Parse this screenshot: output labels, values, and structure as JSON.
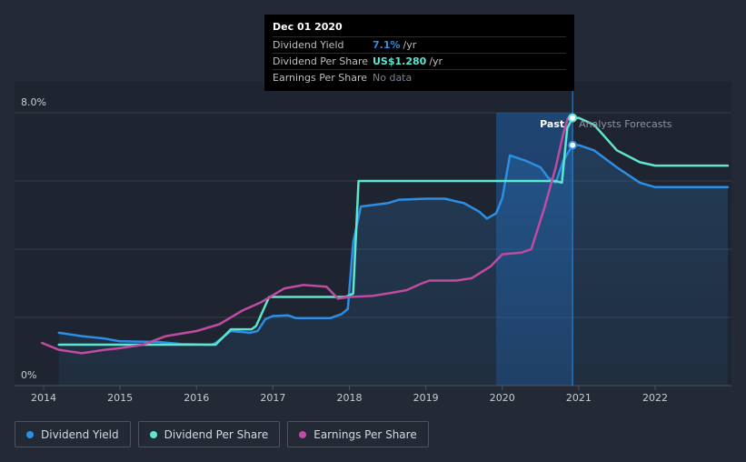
{
  "chart_data": {
    "type": "line",
    "x_unit": "year",
    "ylim": [
      0,
      8
    ],
    "y_ticks": [
      "8.0%",
      "0%"
    ],
    "x_ticks": [
      "2014",
      "2015",
      "2016",
      "2017",
      "2018",
      "2019",
      "2020",
      "2021",
      "2022"
    ],
    "past_label": "Past",
    "forecast_label": "Analysts Forecasts",
    "forecast_start": 2019.92,
    "past_end": 2020.92,
    "series": [
      {
        "name": "Dividend Yield",
        "color": "#2d8ee5",
        "fill": true,
        "points": [
          [
            2014.2,
            1.55
          ],
          [
            2014.5,
            1.45
          ],
          [
            2014.8,
            1.38
          ],
          [
            2015.0,
            1.3
          ],
          [
            2015.5,
            1.28
          ],
          [
            2015.8,
            1.22
          ],
          [
            2016.2,
            1.2
          ],
          [
            2016.25,
            1.25
          ],
          [
            2016.45,
            1.6
          ],
          [
            2016.7,
            1.55
          ],
          [
            2016.8,
            1.6
          ],
          [
            2016.9,
            1.95
          ],
          [
            2017.0,
            2.04
          ],
          [
            2017.2,
            2.06
          ],
          [
            2017.3,
            1.98
          ],
          [
            2017.6,
            1.98
          ],
          [
            2017.75,
            1.98
          ],
          [
            2017.9,
            2.1
          ],
          [
            2017.98,
            2.25
          ],
          [
            2018.05,
            4.2
          ],
          [
            2018.15,
            5.25
          ],
          [
            2018.5,
            5.35
          ],
          [
            2018.65,
            5.45
          ],
          [
            2019.0,
            5.48
          ],
          [
            2019.25,
            5.48
          ],
          [
            2019.5,
            5.35
          ],
          [
            2019.7,
            5.1
          ],
          [
            2019.8,
            4.9
          ],
          [
            2019.92,
            5.05
          ],
          [
            2020.0,
            5.5
          ],
          [
            2020.1,
            6.75
          ],
          [
            2020.3,
            6.6
          ],
          [
            2020.5,
            6.4
          ],
          [
            2020.6,
            6.1
          ],
          [
            2020.7,
            5.95
          ],
          [
            2020.8,
            6.6
          ],
          [
            2020.92,
            7.05
          ],
          [
            2021.0,
            7.05
          ],
          [
            2021.2,
            6.9
          ],
          [
            2021.5,
            6.4
          ],
          [
            2021.8,
            5.95
          ],
          [
            2022.0,
            5.82
          ],
          [
            2022.5,
            5.82
          ],
          [
            2022.95,
            5.82
          ]
        ]
      },
      {
        "name": "Dividend Per Share",
        "color": "#5de6d0",
        "fill": false,
        "points": [
          [
            2014.2,
            1.2
          ],
          [
            2016.25,
            1.2
          ],
          [
            2016.45,
            1.65
          ],
          [
            2016.72,
            1.65
          ],
          [
            2016.78,
            1.75
          ],
          [
            2016.95,
            2.6
          ],
          [
            2017.95,
            2.6
          ],
          [
            2018.05,
            2.7
          ],
          [
            2018.12,
            6.0
          ],
          [
            2020.7,
            6.0
          ],
          [
            2020.78,
            5.95
          ],
          [
            2020.85,
            7.55
          ],
          [
            2020.92,
            7.85
          ],
          [
            2021.0,
            7.85
          ],
          [
            2021.2,
            7.65
          ],
          [
            2021.5,
            6.9
          ],
          [
            2021.8,
            6.55
          ],
          [
            2022.0,
            6.45
          ],
          [
            2022.5,
            6.45
          ],
          [
            2022.95,
            6.45
          ]
        ]
      },
      {
        "name": "Earnings Per Share",
        "color": "#c04ba1",
        "fill": false,
        "points": [
          [
            2013.98,
            1.25
          ],
          [
            2014.2,
            1.05
          ],
          [
            2014.5,
            0.95
          ],
          [
            2014.8,
            1.05
          ],
          [
            2015.0,
            1.1
          ],
          [
            2015.3,
            1.2
          ],
          [
            2015.6,
            1.45
          ],
          [
            2016.0,
            1.6
          ],
          [
            2016.3,
            1.8
          ],
          [
            2016.6,
            2.2
          ],
          [
            2016.85,
            2.45
          ],
          [
            2017.15,
            2.85
          ],
          [
            2017.4,
            2.95
          ],
          [
            2017.7,
            2.9
          ],
          [
            2017.85,
            2.55
          ],
          [
            2018.0,
            2.6
          ],
          [
            2018.3,
            2.63
          ],
          [
            2018.55,
            2.72
          ],
          [
            2018.75,
            2.8
          ],
          [
            2018.95,
            3.0
          ],
          [
            2019.05,
            3.08
          ],
          [
            2019.4,
            3.08
          ],
          [
            2019.6,
            3.15
          ],
          [
            2019.85,
            3.5
          ],
          [
            2020.0,
            3.85
          ],
          [
            2020.25,
            3.9
          ],
          [
            2020.38,
            4.0
          ],
          [
            2020.55,
            5.2
          ],
          [
            2020.7,
            6.4
          ],
          [
            2020.8,
            7.4
          ],
          [
            2020.86,
            7.85
          ]
        ]
      }
    ],
    "markers": [
      {
        "series": "Dividend Per Share",
        "x": 2020.92,
        "y": 7.85
      },
      {
        "series": "Dividend Yield",
        "x": 2020.92,
        "y": 7.05
      }
    ]
  },
  "tooltip": {
    "date": "Dec 01 2020",
    "rows": [
      {
        "label": "Dividend Yield",
        "value": "7.1%",
        "unit": "/yr",
        "color": "#2d8ee5"
      },
      {
        "label": "Dividend Per Share",
        "value": "US$1.280",
        "unit": "/yr",
        "color": "#5de6d0"
      },
      {
        "label": "Earnings Per Share",
        "value": "No data",
        "unit": "",
        "color": "#7d848f"
      }
    ]
  },
  "legend": [
    {
      "label": "Dividend Yield",
      "color": "#2d8ee5"
    },
    {
      "label": "Dividend Per Share",
      "color": "#5de6d0"
    },
    {
      "label": "Earnings Per Share",
      "color": "#c04ba1"
    }
  ]
}
